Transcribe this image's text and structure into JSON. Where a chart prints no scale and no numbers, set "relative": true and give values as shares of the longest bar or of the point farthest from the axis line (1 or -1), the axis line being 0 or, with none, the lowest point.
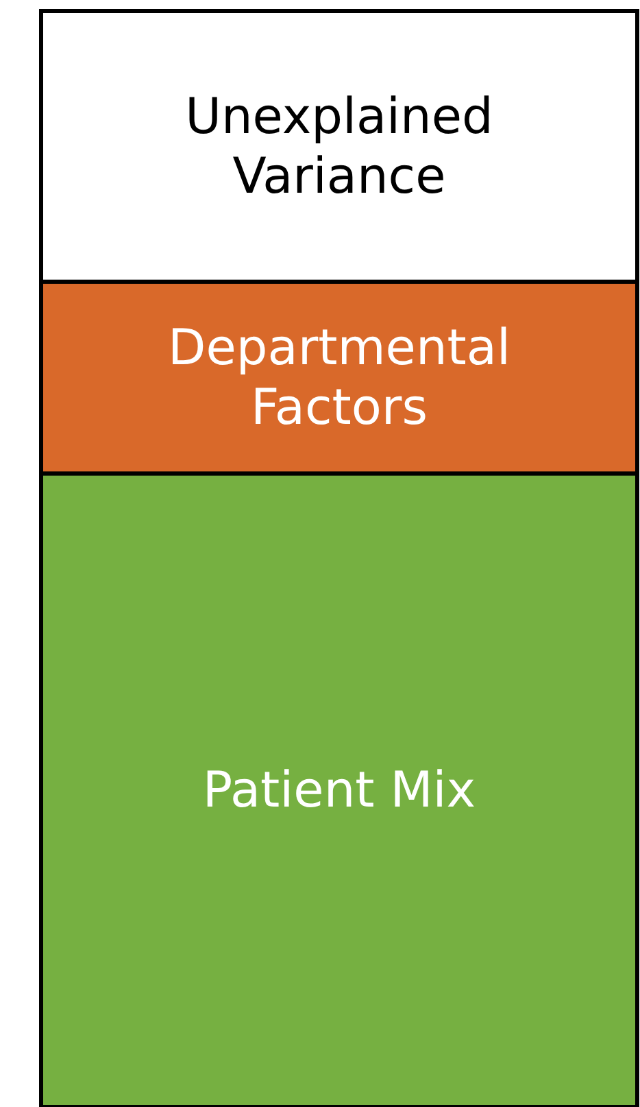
{
  "chart_data": {
    "type": "bar",
    "relative": true,
    "stacked": true,
    "categories": [
      null
    ],
    "series": [
      {
        "name": "Patient Mix",
        "color": "#76b041",
        "values": [
          0.578
        ]
      },
      {
        "name": "Departmental Factors",
        "color": "#d9692a",
        "values": [
          0.175
        ]
      },
      {
        "name": "Unexplained Variance",
        "color": "#ffffff",
        "values": [
          0.247
        ]
      }
    ]
  }
}
